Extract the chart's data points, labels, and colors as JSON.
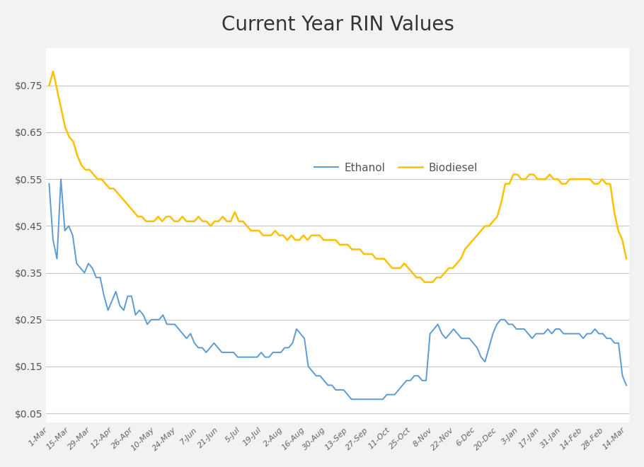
{
  "title": "Current Year RIN Values",
  "title_fontsize": 20,
  "ethanol_color": "#5B9BD5",
  "biodiesel_color": "#FFC000",
  "background_color": "#F2F2F2",
  "plot_bg_color": "#FFFFFF",
  "grid_color": "#C8C8C8",
  "yticks": [
    0.05,
    0.15,
    0.25,
    0.35,
    0.45,
    0.55,
    0.65,
    0.75
  ],
  "ylim": [
    0.03,
    0.83
  ],
  "tick_labels": [
    "1-Mar",
    "15-Mar",
    "29-Mar",
    "12-Apr",
    "26-Apr",
    "10-May",
    "24-May",
    "7-Jun",
    "21-Jun",
    "5-Jul",
    "19-Jul",
    "2-Aug",
    "16-Aug",
    "30-Aug",
    "13-Sep",
    "27-Sep",
    "11-Oct",
    "25-Oct",
    "8-Nov",
    "22-Nov",
    "6-Dec",
    "20-Dec",
    "3-Jan",
    "17-Jan",
    "31-Jan",
    "14-Feb",
    "28-Feb",
    "14-Mar"
  ],
  "ethanol_values": [
    0.54,
    0.42,
    0.38,
    0.55,
    0.44,
    0.45,
    0.43,
    0.37,
    0.36,
    0.35,
    0.37,
    0.36,
    0.34,
    0.34,
    0.3,
    0.27,
    0.29,
    0.31,
    0.28,
    0.27,
    0.3,
    0.3,
    0.26,
    0.27,
    0.26,
    0.24,
    0.25,
    0.25,
    0.25,
    0.26,
    0.24,
    0.24,
    0.24,
    0.23,
    0.22,
    0.21,
    0.22,
    0.2,
    0.19,
    0.19,
    0.18,
    0.19,
    0.2,
    0.19,
    0.18,
    0.18,
    0.18,
    0.18,
    0.17,
    0.17,
    0.17,
    0.17,
    0.17,
    0.17,
    0.18,
    0.17,
    0.17,
    0.18,
    0.18,
    0.18,
    0.19,
    0.19,
    0.2,
    0.23,
    0.22,
    0.21,
    0.15,
    0.14,
    0.13,
    0.13,
    0.12,
    0.11,
    0.11,
    0.1,
    0.1,
    0.1,
    0.09,
    0.08,
    0.08,
    0.08,
    0.08,
    0.08,
    0.08,
    0.08,
    0.08,
    0.08,
    0.09,
    0.09,
    0.09,
    0.1,
    0.11,
    0.12,
    0.12,
    0.13,
    0.13,
    0.12,
    0.12,
    0.22,
    0.23,
    0.24,
    0.22,
    0.21,
    0.22,
    0.23,
    0.22,
    0.21,
    0.21,
    0.21,
    0.2,
    0.19,
    0.17,
    0.16,
    0.19,
    0.22,
    0.24,
    0.25,
    0.25,
    0.24,
    0.24,
    0.23,
    0.23,
    0.23,
    0.22,
    0.21,
    0.22,
    0.22,
    0.22,
    0.23,
    0.22,
    0.23,
    0.23,
    0.22,
    0.22,
    0.22,
    0.22,
    0.22,
    0.21,
    0.22,
    0.22,
    0.23,
    0.22,
    0.22,
    0.21,
    0.21,
    0.2,
    0.2,
    0.13,
    0.11
  ],
  "biodiesel_values": [
    0.75,
    0.78,
    0.74,
    0.7,
    0.66,
    0.64,
    0.63,
    0.6,
    0.58,
    0.57,
    0.57,
    0.56,
    0.55,
    0.55,
    0.54,
    0.53,
    0.53,
    0.52,
    0.51,
    0.5,
    0.49,
    0.48,
    0.47,
    0.47,
    0.46,
    0.46,
    0.46,
    0.47,
    0.46,
    0.47,
    0.47,
    0.46,
    0.46,
    0.47,
    0.46,
    0.46,
    0.46,
    0.47,
    0.46,
    0.46,
    0.45,
    0.46,
    0.46,
    0.47,
    0.46,
    0.46,
    0.48,
    0.46,
    0.46,
    0.45,
    0.44,
    0.44,
    0.44,
    0.43,
    0.43,
    0.43,
    0.44,
    0.43,
    0.43,
    0.42,
    0.43,
    0.42,
    0.42,
    0.43,
    0.42,
    0.43,
    0.43,
    0.43,
    0.42,
    0.42,
    0.42,
    0.42,
    0.41,
    0.41,
    0.41,
    0.4,
    0.4,
    0.4,
    0.39,
    0.39,
    0.39,
    0.38,
    0.38,
    0.38,
    0.37,
    0.36,
    0.36,
    0.36,
    0.37,
    0.36,
    0.35,
    0.34,
    0.34,
    0.33,
    0.33,
    0.33,
    0.34,
    0.34,
    0.35,
    0.36,
    0.36,
    0.37,
    0.38,
    0.4,
    0.41,
    0.42,
    0.43,
    0.44,
    0.45,
    0.45,
    0.46,
    0.47,
    0.5,
    0.54,
    0.54,
    0.56,
    0.56,
    0.55,
    0.55,
    0.56,
    0.56,
    0.55,
    0.55,
    0.55,
    0.56,
    0.55,
    0.55,
    0.54,
    0.54,
    0.55,
    0.55,
    0.55,
    0.55,
    0.55,
    0.55,
    0.54,
    0.54,
    0.55,
    0.54,
    0.54,
    0.48,
    0.44,
    0.42,
    0.38
  ]
}
